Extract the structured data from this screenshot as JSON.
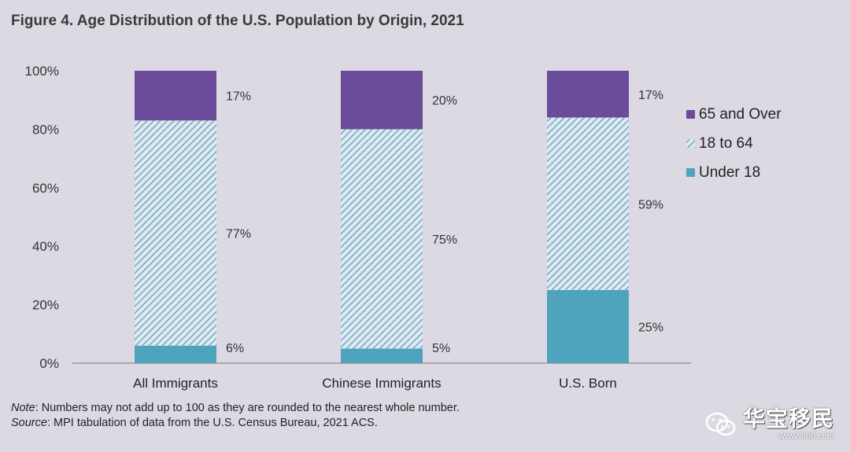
{
  "title": "Figure 4. Age Distribution of the U.S. Population by Origin, 2021",
  "chart_data": {
    "type": "bar",
    "stacked": true,
    "title": "Figure 4. Age Distribution of the U.S. Population by Origin, 2021",
    "categories": [
      "All Immigrants",
      "Chinese Immigrants",
      "U.S. Born"
    ],
    "series": [
      {
        "name": "Under 18",
        "values": [
          6,
          5,
          25
        ],
        "labels": [
          "6%",
          "5%",
          "25%"
        ],
        "color": "#4fa3bd",
        "pattern": "solid"
      },
      {
        "name": "18 to 64",
        "values": [
          77,
          75,
          59
        ],
        "labels": [
          "77%",
          "75%",
          "59%"
        ],
        "color": "#6ea8c4",
        "pattern": "hatched"
      },
      {
        "name": "65 and Over",
        "values": [
          17,
          20,
          17
        ],
        "labels": [
          "17%",
          "20%",
          "17%"
        ],
        "color": "#6b4c9a",
        "pattern": "solid"
      }
    ],
    "ylim": [
      0,
      100
    ],
    "yticks": [
      "0%",
      "20%",
      "40%",
      "60%",
      "80%",
      "100%"
    ],
    "legend_position": "right",
    "grid": false
  },
  "footnotes": {
    "note_label": "Note",
    "note_text": ": Numbers may not add up to 100 as they are rounded to the nearest whole number.",
    "source_label": "Source",
    "source_text": ": MPI tabulation of data from the U.S. Census Bureau, 2021 ACS."
  },
  "watermark": {
    "logo_text": "华宝移民",
    "url": "www.ihb8.com",
    "icon": "wechat-icon"
  }
}
